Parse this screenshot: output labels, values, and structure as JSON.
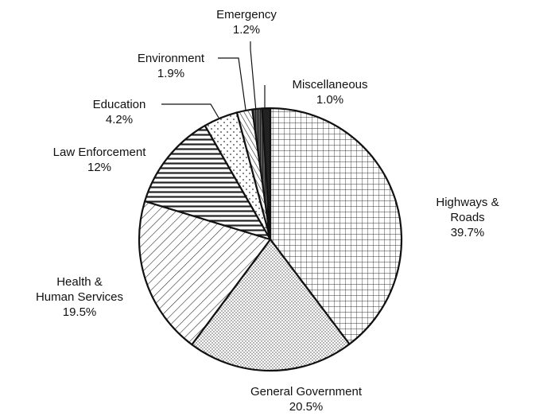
{
  "chart_data": {
    "type": "pie",
    "categories": [
      "Highways & Roads",
      "General Government",
      "Health &\nHuman Services",
      "Law Enforcement",
      "Education",
      "Environment",
      "Emergency",
      "Miscellaneous"
    ],
    "values": [
      39.7,
      20.5,
      19.5,
      12,
      4.2,
      1.9,
      1.2,
      1.0
    ],
    "value_labels": [
      "39.7%",
      "20.5%",
      "19.5%",
      "12%",
      "4.2%",
      "1.9%",
      "1.2%",
      "1.0%"
    ]
  }
}
